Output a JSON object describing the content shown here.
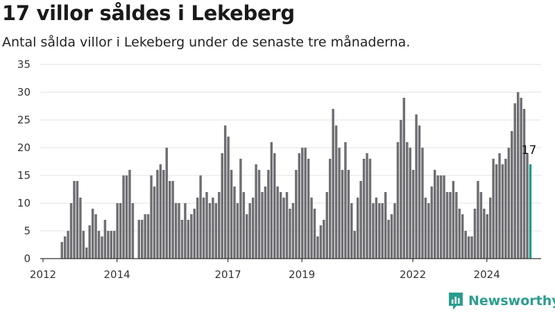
{
  "title": "17 villor såldes i Lekeberg",
  "subtitle": "Antal sålda villor i Lekeberg under de senaste tre månaderna.",
  "brand": {
    "name": "Newsworthy",
    "icon": "bar-chart-logo-icon",
    "color": "#2a9d8f"
  },
  "chart_data": {
    "type": "bar",
    "title": "17 villor såldes i Lekeberg",
    "subtitle": "Antal sålda villor i Lekeberg under de senaste tre månaderna.",
    "xlabel": "",
    "ylabel": "",
    "ylim": [
      0,
      35
    ],
    "yticks": [
      0,
      5,
      10,
      15,
      20,
      25,
      30,
      35
    ],
    "xticks": [
      "2012",
      "2014",
      "2017",
      "2019",
      "2022",
      "2024"
    ],
    "xtick_positions": [
      2012,
      2014,
      2017,
      2019,
      2022,
      2024
    ],
    "x_start": 2012.0,
    "x_end": 2025.0,
    "grid": true,
    "legend": "none",
    "bar_color": "#6e6e73",
    "highlight_color": "#1f9d8a",
    "annotation": {
      "text": "17",
      "value": 17
    },
    "values": [
      3,
      4,
      5,
      10,
      14,
      14,
      11,
      5,
      2,
      6,
      9,
      8,
      5,
      4,
      7,
      5,
      5,
      5,
      10,
      10,
      15,
      15,
      16,
      10,
      0,
      7,
      7,
      8,
      8,
      15,
      13,
      16,
      17,
      16,
      20,
      14,
      14,
      10,
      10,
      7,
      10,
      7,
      8,
      9,
      11,
      15,
      11,
      12,
      10,
      11,
      10,
      12,
      19,
      24,
      22,
      16,
      13,
      10,
      18,
      12,
      8,
      10,
      11,
      17,
      16,
      12,
      13,
      16,
      21,
      19,
      13,
      12,
      11,
      12,
      9,
      10,
      16,
      19,
      20,
      20,
      18,
      11,
      9,
      4,
      6,
      7,
      12,
      18,
      27,
      24,
      20,
      16,
      21,
      16,
      10,
      5,
      11,
      14,
      18,
      19,
      18,
      10,
      11,
      10,
      10,
      12,
      7,
      8,
      10,
      21,
      25,
      29,
      21,
      20,
      16,
      26,
      24,
      20,
      11,
      10,
      13,
      16,
      15,
      15,
      15,
      12,
      12,
      14,
      12,
      9,
      8,
      5,
      4,
      4,
      9,
      14,
      12,
      9,
      8,
      11,
      18,
      17,
      19,
      17,
      18,
      20,
      23,
      28,
      30,
      29,
      27,
      19,
      17
    ]
  }
}
